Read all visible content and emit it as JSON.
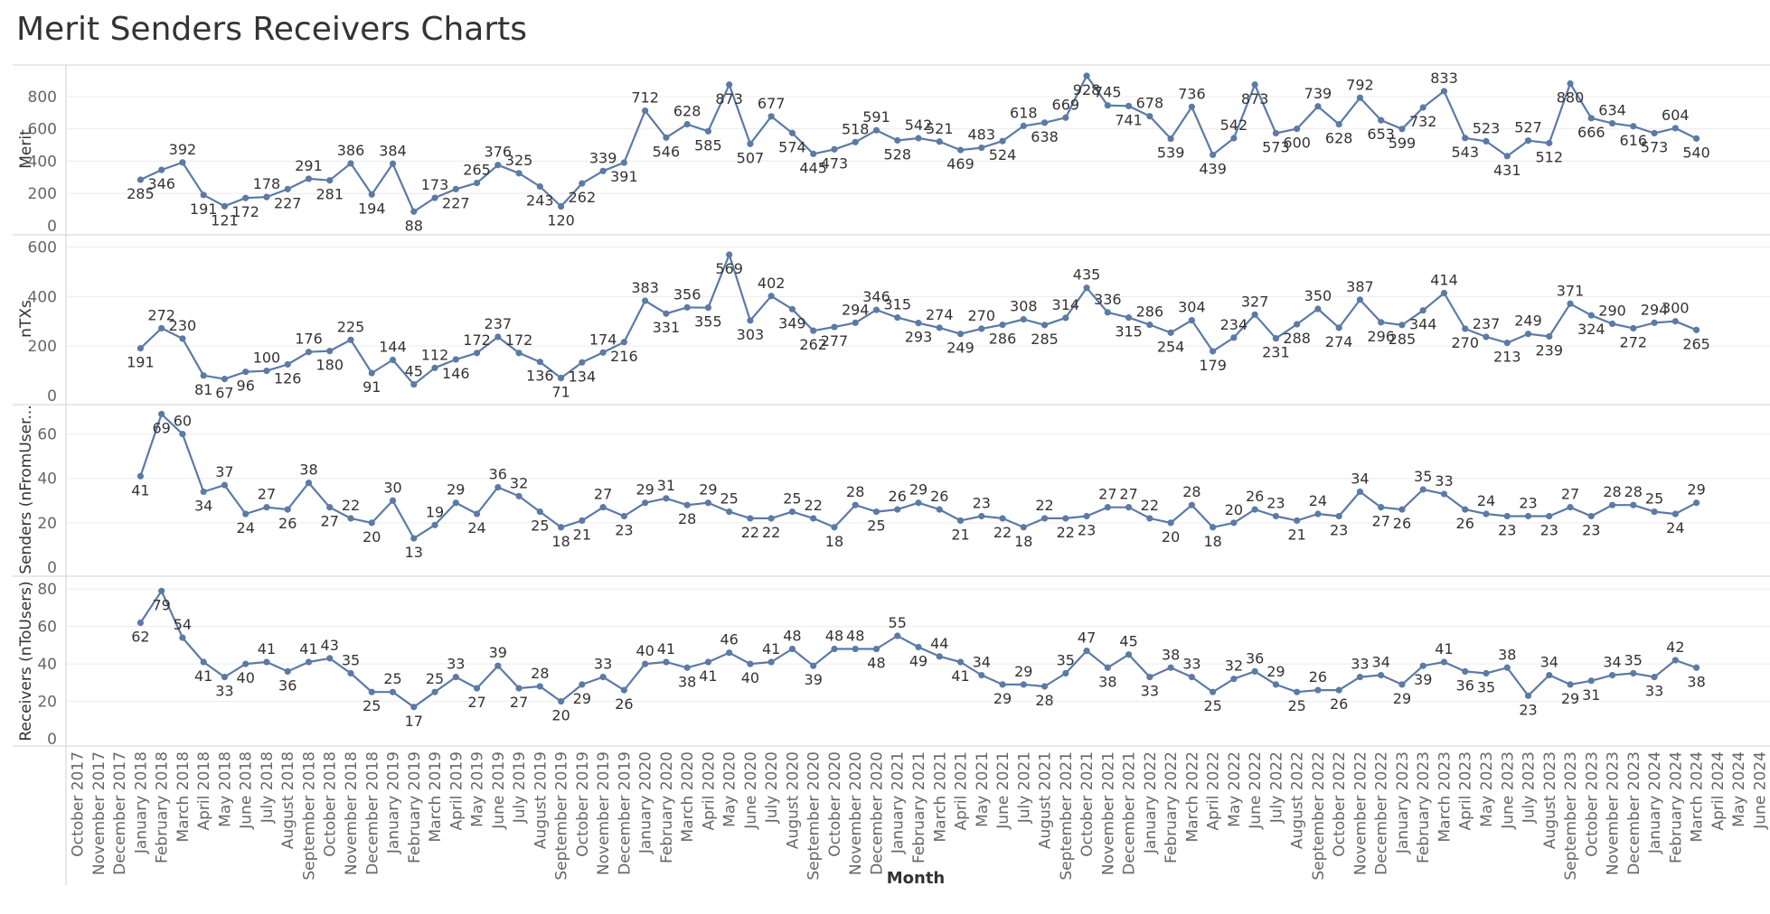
{
  "page": {
    "title": "Merit Senders Receivers Charts"
  },
  "colors": {
    "line": "#5b7aa6",
    "grid": "#ececec",
    "axis": "#d0d0d0"
  },
  "chart_data": [
    {
      "type": "line",
      "ylabel": "Merit",
      "ylim": [
        0,
        950
      ],
      "yticks": [
        0,
        200,
        400,
        600,
        800
      ],
      "start_month_index": 3,
      "values": [
        285,
        346,
        392,
        191,
        121,
        172,
        178,
        227,
        291,
        281,
        386,
        194,
        384,
        88,
        173,
        227,
        265,
        376,
        325,
        243,
        120,
        262,
        339,
        391,
        712,
        546,
        628,
        585,
        873,
        507,
        677,
        574,
        445,
        473,
        518,
        591,
        528,
        542,
        521,
        469,
        483,
        524,
        618,
        638,
        669,
        928,
        745,
        741,
        678,
        539,
        736,
        439,
        542,
        873,
        573,
        600,
        739,
        628,
        792,
        653,
        599,
        732,
        833,
        543,
        523,
        431,
        527,
        512,
        880,
        666,
        634,
        616,
        573,
        604,
        540
      ]
    },
    {
      "type": "line",
      "ylabel": "nTXs",
      "ylim": [
        0,
        620
      ],
      "yticks": [
        0,
        200,
        400,
        600
      ],
      "start_month_index": 3,
      "values": [
        191,
        272,
        230,
        81,
        67,
        96,
        100,
        126,
        176,
        180,
        225,
        91,
        144,
        45,
        112,
        146,
        172,
        237,
        172,
        136,
        71,
        134,
        174,
        216,
        383,
        331,
        356,
        355,
        569,
        303,
        402,
        349,
        262,
        277,
        294,
        346,
        315,
        293,
        274,
        249,
        270,
        286,
        308,
        285,
        314,
        435,
        336,
        315,
        286,
        254,
        304,
        179,
        234,
        327,
        231,
        288,
        350,
        274,
        387,
        296,
        285,
        344,
        414,
        270,
        237,
        213,
        249,
        239,
        371,
        324,
        290,
        272,
        294,
        300,
        265
      ]
    },
    {
      "type": "line",
      "ylabel": "Senders (nFromUser...",
      "ylim": [
        0,
        70
      ],
      "yticks": [
        0,
        20,
        40,
        60
      ],
      "start_month_index": 3,
      "values": [
        41,
        69,
        60,
        34,
        37,
        24,
        27,
        26,
        38,
        27,
        22,
        20,
        30,
        13,
        19,
        29,
        24,
        36,
        32,
        25,
        18,
        21,
        27,
        23,
        29,
        31,
        28,
        29,
        25,
        22,
        22,
        25,
        22,
        18,
        28,
        25,
        26,
        29,
        26,
        21,
        23,
        22,
        18,
        22,
        22,
        23,
        27,
        27,
        22,
        20,
        28,
        18,
        20,
        26,
        23,
        21,
        24,
        23,
        34,
        27,
        26,
        35,
        33,
        26,
        24,
        23,
        23,
        23,
        27,
        23,
        28,
        28,
        25,
        24,
        29
      ]
    },
    {
      "type": "line",
      "ylabel": "Receivers (nToUsers)",
      "ylim": [
        0,
        83
      ],
      "yticks": [
        0,
        20,
        40,
        60,
        80
      ],
      "start_month_index": 3,
      "values": [
        62,
        79,
        54,
        41,
        33,
        40,
        41,
        36,
        41,
        43,
        35,
        25,
        25,
        17,
        25,
        33,
        27,
        39,
        27,
        28,
        20,
        29,
        33,
        26,
        40,
        41,
        38,
        41,
        46,
        40,
        41,
        48,
        39,
        48,
        48,
        48,
        55,
        49,
        44,
        41,
        34,
        29,
        29,
        28,
        35,
        47,
        38,
        45,
        33,
        38,
        33,
        25,
        32,
        36,
        29,
        25,
        26,
        26,
        33,
        34,
        29,
        39,
        41,
        36,
        35,
        38,
        23,
        34,
        29,
        31,
        34,
        35,
        33,
        42,
        38
      ]
    }
  ],
  "x_axis": {
    "title": "Month",
    "labels": [
      "October 2017",
      "November 2017",
      "December 2017",
      "January 2018",
      "February 2018",
      "March 2018",
      "April 2018",
      "May 2018",
      "June 2018",
      "July 2018",
      "August 2018",
      "September 2018",
      "October 2018",
      "November 2018",
      "December 2018",
      "January 2019",
      "February 2019",
      "March 2019",
      "April 2019",
      "May 2019",
      "June 2019",
      "July 2019",
      "August 2019",
      "September 2019",
      "October 2019",
      "November 2019",
      "December 2019",
      "January 2020",
      "February 2020",
      "March 2020",
      "April 2020",
      "May 2020",
      "June 2020",
      "July 2020",
      "August 2020",
      "September 2020",
      "October 2020",
      "November 2020",
      "December 2020",
      "January 2021",
      "February 2021",
      "March 2021",
      "April 2021",
      "May 2021",
      "June 2021",
      "July 2021",
      "August 2021",
      "September 2021",
      "October 2021",
      "November 2021",
      "December 2021",
      "January 2022",
      "February 2022",
      "March 2022",
      "April 2022",
      "May 2022",
      "June 2022",
      "July 2022",
      "August 2022",
      "September 2022",
      "October 2022",
      "November 2022",
      "December 2022",
      "January 2023",
      "February 2023",
      "March 2023",
      "April 2023",
      "May 2023",
      "June 2023",
      "July 2023",
      "August 2023",
      "September 2023",
      "October 2023",
      "November 2023",
      "December 2023",
      "January 2024",
      "February 2024",
      "March 2024",
      "April 2024",
      "May 2024",
      "June 2024"
    ]
  }
}
